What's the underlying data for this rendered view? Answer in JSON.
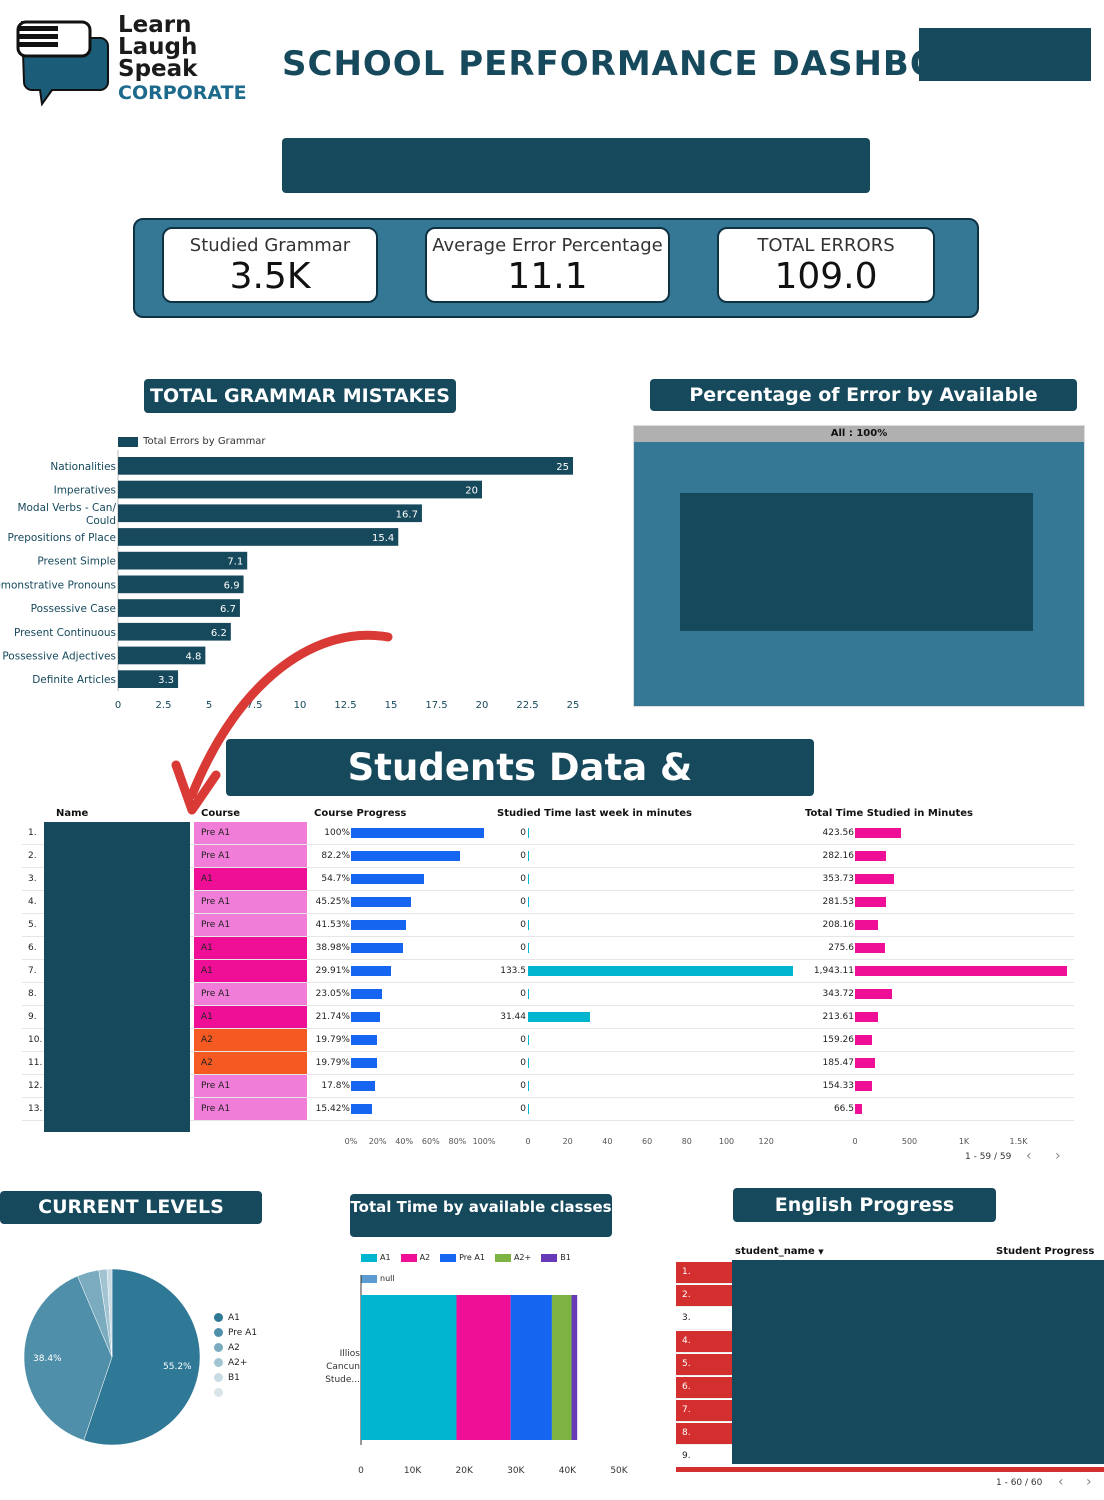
{
  "header": {
    "logo_lines": [
      "Learn",
      "Laugh",
      "Speak"
    ],
    "logo_corporate": "CORPORATE",
    "title": "SCHOOL PERFORMANCE DASHBOARD"
  },
  "kpis": [
    {
      "label": "Studied Grammar",
      "value": "3.5K"
    },
    {
      "label": "Average Error Percentage",
      "value": "11.1"
    },
    {
      "label": "TOTAL ERRORS",
      "value": "109.0"
    }
  ],
  "grammar": {
    "heading": "TOTAL GRAMMAR MISTAKES",
    "legend": "Total Errors by Grammar",
    "ticks": [
      "0",
      "2.5",
      "5",
      "7.5",
      "10",
      "12.5",
      "15",
      "17.5",
      "20",
      "22.5",
      "25"
    ]
  },
  "error_classes": {
    "heading": "Percentage of Error by Available Classes",
    "treemap_label": "All : 100%"
  },
  "students": {
    "heading": "Students Data & Performance",
    "columns": [
      "Name",
      "Course",
      "Course Progress",
      "Studied Time last week in minutes",
      "Total Time Studied in Minutes"
    ],
    "rows": [
      {
        "n": "1.",
        "course": "Pre A1",
        "progress": "100%",
        "p": 100,
        "week": "0",
        "w": 0,
        "total": "423.56",
        "t": 423.56
      },
      {
        "n": "2.",
        "course": "Pre A1",
        "progress": "82.2%",
        "p": 82.2,
        "week": "0",
        "w": 0,
        "total": "282.16",
        "t": 282.16
      },
      {
        "n": "3.",
        "course": "A1",
        "progress": "54.7%",
        "p": 54.7,
        "week": "0",
        "w": 0,
        "total": "353.73",
        "t": 353.73
      },
      {
        "n": "4.",
        "course": "Pre A1",
        "progress": "45.25%",
        "p": 45.25,
        "week": "0",
        "w": 0,
        "total": "281.53",
        "t": 281.53
      },
      {
        "n": "5.",
        "course": "Pre A1",
        "progress": "41.53%",
        "p": 41.53,
        "week": "0",
        "w": 0,
        "total": "208.16",
        "t": 208.16
      },
      {
        "n": "6.",
        "course": "A1",
        "progress": "38.98%",
        "p": 38.98,
        "week": "0",
        "w": 0,
        "total": "275.6",
        "t": 275.6
      },
      {
        "n": "7.",
        "course": "A1",
        "progress": "29.91%",
        "p": 29.91,
        "week": "133.5",
        "w": 133.5,
        "total": "1,943.11",
        "t": 1943.11
      },
      {
        "n": "8.",
        "course": "Pre A1",
        "progress": "23.05%",
        "p": 23.05,
        "week": "0",
        "w": 0,
        "total": "343.72",
        "t": 343.72
      },
      {
        "n": "9.",
        "course": "A1",
        "progress": "21.74%",
        "p": 21.74,
        "week": "31.44",
        "w": 31.44,
        "total": "213.61",
        "t": 213.61
      },
      {
        "n": "10.",
        "course": "A2",
        "progress": "19.79%",
        "p": 19.79,
        "week": "0",
        "w": 0,
        "total": "159.26",
        "t": 159.26
      },
      {
        "n": "11.",
        "course": "A2",
        "progress": "19.79%",
        "p": 19.79,
        "week": "0",
        "w": 0,
        "total": "185.47",
        "t": 185.47
      },
      {
        "n": "12.",
        "course": "Pre A1",
        "progress": "17.8%",
        "p": 17.8,
        "week": "0",
        "w": 0,
        "total": "154.33",
        "t": 154.33
      },
      {
        "n": "13.",
        "course": "Pre A1",
        "progress": "15.42%",
        "p": 15.42,
        "week": "0",
        "w": 0,
        "total": "66.5",
        "t": 66.5
      }
    ],
    "course_colors": {
      "Pre A1": "#f07dd8",
      "A1": "#ee0f96",
      "A2": "#f55a22"
    },
    "progress_ticks": [
      "0%",
      "20%",
      "40%",
      "60%",
      "80%",
      "100%"
    ],
    "week_ticks": [
      "0",
      "20",
      "40",
      "60",
      "80",
      "100",
      "120"
    ],
    "total_ticks": [
      "0",
      "500",
      "1K",
      "1.5K"
    ],
    "pagination": "1 - 59 / 59"
  },
  "levels": {
    "heading": "CURRENT LEVELS",
    "legend": [
      "A1",
      "Pre A1",
      "A2",
      "A2+",
      "B1"
    ],
    "slice_labels": [
      "55.2%",
      "38.4%"
    ]
  },
  "time_classes": {
    "heading": "Total Time by available classes",
    "legend": [
      "A1",
      "A2",
      "Pre A1",
      "A2+",
      "B1",
      "null"
    ],
    "colors": [
      "#00b5cf",
      "#ee0f96",
      "#1565f0",
      "#7cb342",
      "#673ab7",
      "#5c9bd1"
    ],
    "category_lines": [
      "Illios",
      "Cancun",
      "Stude..."
    ],
    "ticks": [
      "0",
      "10K",
      "20K",
      "30K",
      "40K",
      "50K"
    ]
  },
  "progress": {
    "heading": "English Progress",
    "col_name": "student_name",
    "col_progress": "Student Progress",
    "rows": [
      "1.",
      "2.",
      "3.",
      "4.",
      "5.",
      "6.",
      "7.",
      "8.",
      "9."
    ],
    "pagination": "1 - 60 / 60"
  },
  "chart_data": [
    {
      "type": "bar",
      "orientation": "horizontal",
      "title": "TOTAL GRAMMAR MISTAKES",
      "categories": [
        "Nationalities",
        "Imperatives",
        "Modal Verbs - Can/ Could",
        "Prepositions of Place",
        "Present Simple",
        "Demonstrative Pronouns",
        "Possessive Case",
        "Present Continuous",
        "Possessive Adjectives",
        "Definite Articles"
      ],
      "series": [
        {
          "name": "Total Errors by Grammar",
          "values": [
            25,
            20,
            16.7,
            15.4,
            7.1,
            6.9,
            6.7,
            6.2,
            4.8,
            3.3
          ]
        }
      ],
      "xlim": [
        0,
        25
      ]
    },
    {
      "type": "pie",
      "title": "CURRENT LEVELS",
      "categories": [
        "A1",
        "Pre A1",
        "A2",
        "A2+",
        "B1"
      ],
      "values": [
        55.2,
        38.4,
        4.0,
        1.5,
        0.9
      ]
    },
    {
      "type": "bar",
      "orientation": "horizontal",
      "stacked": true,
      "title": "Total Time by available classes",
      "categories": [
        "Illios Cancun Stude..."
      ],
      "series": [
        {
          "name": "A1",
          "values": [
            18500
          ]
        },
        {
          "name": "A2",
          "values": [
            10500
          ]
        },
        {
          "name": "Pre A1",
          "values": [
            8000
          ]
        },
        {
          "name": "A2+",
          "values": [
            3800
          ]
        },
        {
          "name": "B1",
          "values": [
            1100
          ]
        }
      ],
      "xlim": [
        0,
        50000
      ]
    }
  ]
}
